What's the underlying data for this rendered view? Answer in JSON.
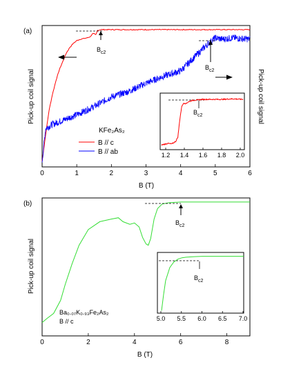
{
  "chart_data": [
    {
      "panel_label": "(a)",
      "type": "line",
      "xlabel": "B (T)",
      "ylabel_left": "Pick-up coil signal",
      "ylabel_right": "Pick-up coil signal",
      "xlim": [
        0,
        6
      ],
      "xticks": [
        "0",
        "1",
        "2",
        "3",
        "4",
        "5",
        "6"
      ],
      "legend": {
        "title": "KFe₂As₂",
        "placement": "lower-left"
      },
      "series": [
        {
          "name": "B // c",
          "color": "#ff0000",
          "x": [
            0,
            0.1,
            0.2,
            0.3,
            0.4,
            0.5,
            0.6,
            0.7,
            0.8,
            0.9,
            1.0,
            1.1,
            1.2,
            1.3,
            1.4,
            1.45,
            1.5,
            1.55,
            1.6,
            1.7,
            2.0,
            3.0,
            4.0,
            5.0,
            6.0
          ],
          "y": [
            0.03,
            0.22,
            0.4,
            0.52,
            0.62,
            0.7,
            0.76,
            0.82,
            0.86,
            0.89,
            0.91,
            0.92,
            0.925,
            0.93,
            0.94,
            0.96,
            0.96,
            0.95,
            0.985,
            0.99,
            0.99,
            0.99,
            0.99,
            0.99,
            0.99
          ]
        },
        {
          "name": "B // ab",
          "color": "#0000ff",
          "x": [
            0,
            0.1,
            0.3,
            0.5,
            0.8,
            1.0,
            1.5,
            2.0,
            2.5,
            3.0,
            3.5,
            4.0,
            4.2,
            4.4,
            4.6,
            4.8,
            5.0,
            5.2,
            5.5,
            6.0
          ],
          "y": [
            0.03,
            0.27,
            0.3,
            0.32,
            0.35,
            0.37,
            0.43,
            0.5,
            0.54,
            0.6,
            0.65,
            0.69,
            0.74,
            0.79,
            0.84,
            0.89,
            0.93,
            0.92,
            0.93,
            0.92
          ]
        }
      ],
      "annotations": [
        {
          "text": "B",
          "subscript": "c2"
        },
        {
          "text": "B",
          "subscript": "c2"
        }
      ],
      "inset": {
        "series": "B // c",
        "xlim": [
          1.2,
          2.0
        ],
        "xticks": [
          "1.2",
          "1.4",
          "1.6",
          "1.8",
          "2.0"
        ],
        "x": [
          1.2,
          1.26,
          1.3,
          1.34,
          1.36,
          1.38,
          1.4,
          1.42,
          1.44,
          1.46,
          1.5,
          1.6,
          1.7,
          1.8,
          1.9,
          2.0
        ],
        "y": [
          0.05,
          0.08,
          0.07,
          0.12,
          0.2,
          0.55,
          0.8,
          0.85,
          0.84,
          0.87,
          0.9,
          0.92,
          0.92,
          0.92,
          0.93,
          0.92
        ],
        "annotation": {
          "text": "B",
          "subscript": "c2"
        }
      }
    },
    {
      "panel_label": "(b)",
      "type": "line",
      "xlabel": "B (T)",
      "ylabel": "Pick-up coil signal",
      "xlim": [
        0,
        9
      ],
      "xticks": [
        "0",
        "2",
        "4",
        "6",
        "8"
      ],
      "legend": {
        "line1": "Ba₀.₀₇K₀.₉₃Fe₂As₂",
        "line2": "B // c",
        "placement": "lower-left"
      },
      "series": [
        {
          "color": "#33dd33",
          "x": [
            0,
            0.2,
            0.5,
            0.8,
            1.0,
            1.3,
            1.6,
            2.0,
            2.5,
            3.0,
            3.3,
            3.5,
            3.8,
            4.0,
            4.2,
            4.35,
            4.5,
            4.6,
            4.7,
            4.85,
            5.0,
            5.2,
            5.5,
            6.0,
            7.0,
            8.0,
            9.0
          ],
          "y": [
            0.07,
            0.1,
            0.14,
            0.24,
            0.36,
            0.52,
            0.66,
            0.78,
            0.84,
            0.86,
            0.87,
            0.84,
            0.82,
            0.83,
            0.8,
            0.72,
            0.67,
            0.66,
            0.71,
            0.86,
            0.94,
            0.975,
            0.985,
            0.99,
            0.99,
            0.99,
            0.99
          ]
        }
      ],
      "annotations": [
        {
          "text": "B",
          "subscript": "c2"
        }
      ],
      "inset": {
        "xlim": [
          4.9,
          7.0
        ],
        "xticks": [
          "5.0",
          "5.5",
          "6.0",
          "6.5",
          "7.0"
        ],
        "x": [
          5.0,
          5.05,
          5.1,
          5.2,
          5.3,
          5.4,
          5.5,
          5.6,
          5.8,
          6.0,
          6.5,
          7.0
        ],
        "y": [
          0.02,
          0.3,
          0.55,
          0.78,
          0.88,
          0.93,
          0.955,
          0.965,
          0.975,
          0.98,
          0.98,
          0.98
        ],
        "annotation": {
          "text": "B",
          "subscript": "c2"
        }
      }
    }
  ]
}
